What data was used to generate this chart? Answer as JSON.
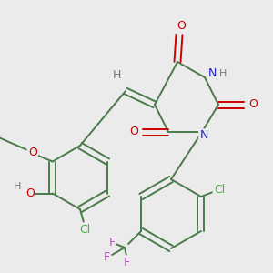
{
  "background_color": "#ebebeb",
  "fig_size": [
    3.0,
    3.0
  ],
  "dpi": 100,
  "bond_color": "#4a7a4a",
  "bond_lw": 1.4,
  "atom_colors": {
    "O": "#cc0000",
    "N": "#2222cc",
    "Cl": "#44bb44",
    "F": "#cc44cc",
    "H": "#777777",
    "C": "#4a7a4a"
  },
  "fontsize": 9
}
